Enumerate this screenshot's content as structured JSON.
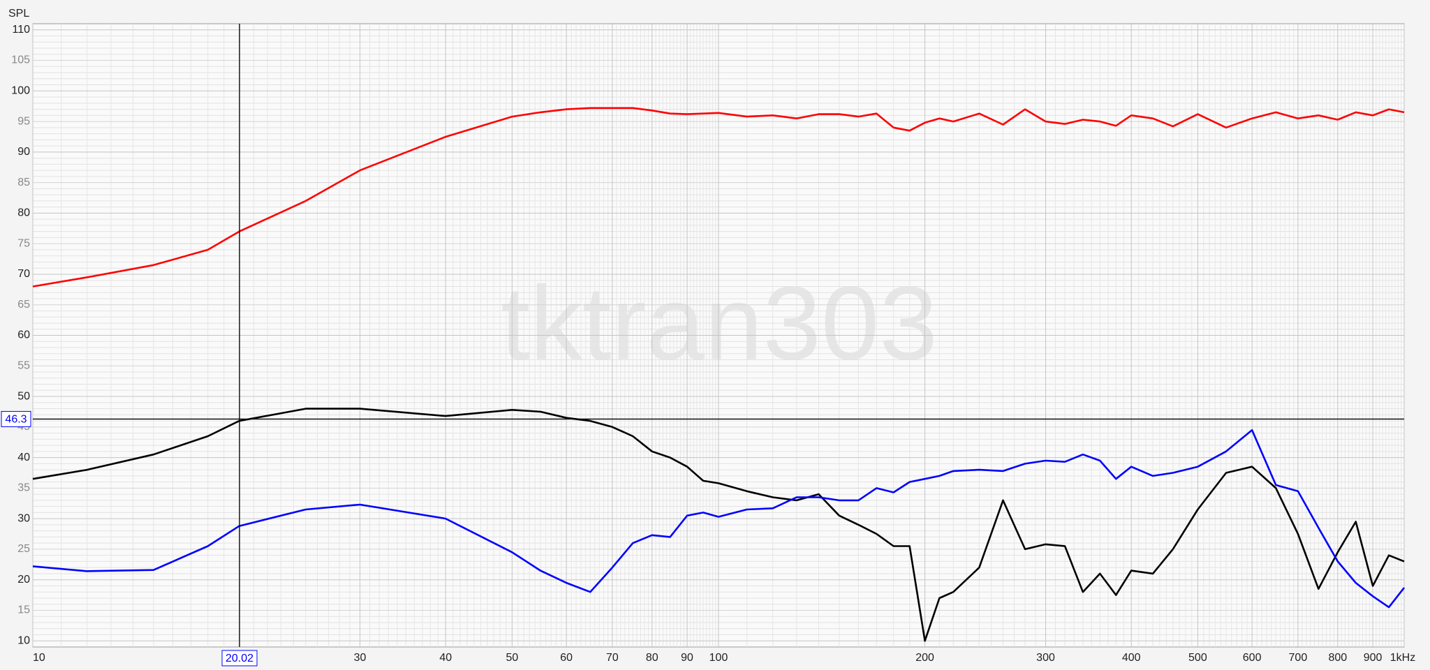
{
  "chart_data": {
    "type": "line",
    "y_label": "SPL",
    "watermark": "tktran303",
    "xlog": true,
    "grid": true,
    "minor_grid": true,
    "xlim": [
      10,
      1000
    ],
    "ylim": [
      9,
      111
    ],
    "xticks": [
      10,
      20,
      30,
      40,
      50,
      60,
      70,
      80,
      90,
      100,
      200,
      300,
      400,
      500,
      600,
      700,
      800,
      900,
      {
        "value": 1000,
        "label": "1kHz"
      }
    ],
    "yticks": [
      10,
      15,
      20,
      25,
      30,
      35,
      40,
      45,
      50,
      55,
      60,
      65,
      70,
      75,
      80,
      85,
      90,
      95,
      100,
      105,
      110
    ],
    "cursor": {
      "x": 20.02,
      "y": 46.3,
      "color": "#0000ff"
    },
    "x": [
      10,
      12,
      15,
      18,
      20,
      25,
      30,
      40,
      50,
      55,
      60,
      65,
      70,
      75,
      80,
      85,
      90,
      95,
      100,
      110,
      120,
      130,
      140,
      150,
      160,
      170,
      180,
      190,
      200,
      210,
      220,
      240,
      260,
      280,
      300,
      320,
      340,
      360,
      380,
      400,
      430,
      460,
      500,
      550,
      600,
      650,
      700,
      750,
      800,
      850,
      900,
      950,
      1000
    ],
    "series": [
      {
        "name": "red",
        "color": "#ff0000",
        "values": [
          68,
          69.5,
          71.5,
          74,
          77,
          82,
          87,
          92.5,
          95.8,
          96.5,
          97,
          97.2,
          97.2,
          97.2,
          96.8,
          96.3,
          96.2,
          96.3,
          96.4,
          95.8,
          96,
          95.5,
          96.2,
          96.2,
          95.8,
          96.3,
          94,
          93.5,
          94.8,
          95.5,
          95,
          96.3,
          94.5,
          97,
          95,
          94.6,
          95.3,
          95,
          94.3,
          96,
          95.5,
          94.2,
          96.2,
          94,
          95.5,
          96.5,
          95.5,
          96,
          95.3,
          96.5,
          96,
          97,
          96.5
        ]
      },
      {
        "name": "black",
        "color": "#000000",
        "values": [
          36.5,
          38,
          40.5,
          43.5,
          46,
          48,
          48,
          46.8,
          47.8,
          47.5,
          46.5,
          46,
          45,
          43.5,
          41,
          40,
          38.5,
          36.2,
          35.8,
          34.5,
          33.5,
          33,
          34,
          30.5,
          29,
          27.5,
          25.5,
          25.5,
          10,
          17,
          18,
          22,
          33,
          25,
          25.8,
          25.5,
          18,
          21,
          17.5,
          21.5,
          21,
          25,
          31.5,
          37.5,
          38.5,
          35,
          27.5,
          18.5,
          24.5,
          29.5,
          19,
          24,
          23
        ]
      },
      {
        "name": "blue",
        "color": "#0000ff",
        "values": [
          22.2,
          21.4,
          21.6,
          25.5,
          28.8,
          31.5,
          32.3,
          30,
          24.5,
          21.5,
          19.5,
          18,
          22,
          26,
          27.3,
          27,
          30.5,
          31,
          30.3,
          31.5,
          31.7,
          33.5,
          33.5,
          33,
          33,
          35,
          34.3,
          36,
          36.5,
          37,
          37.8,
          38,
          37.8,
          39,
          39.5,
          39.3,
          40.5,
          39.5,
          36.5,
          38.5,
          37,
          37.5,
          38.5,
          41,
          44.5,
          35.5,
          34.5,
          28.5,
          23,
          19.5,
          17.3,
          15.5,
          18.7
        ]
      }
    ]
  }
}
